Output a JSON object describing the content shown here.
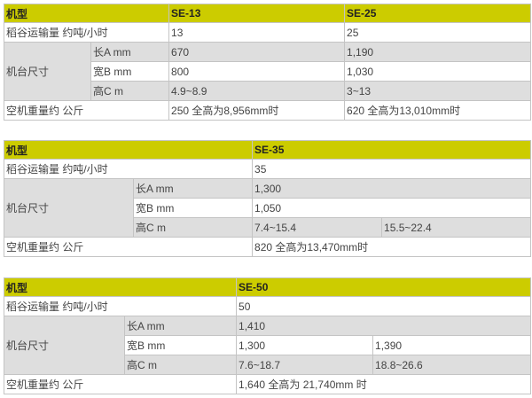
{
  "labels": {
    "model": "机型",
    "capacity": "稻谷运输量 约吨/小时",
    "dimensions": "机台尺寸",
    "length": "长A mm",
    "width": "宽B mm",
    "height": "高C m",
    "weight": "空机重量约 公斤"
  },
  "table1": {
    "models": [
      "SE-13",
      "SE-25"
    ],
    "capacity": [
      "13",
      "25"
    ],
    "length": [
      "670",
      "1,190"
    ],
    "width": [
      "800",
      "1,030"
    ],
    "height": [
      "4.9~8.9",
      "3~13"
    ],
    "weight": [
      "250 全高为8,956mm时",
      "620 全高为13,010mm时"
    ]
  },
  "table2": {
    "model": "SE-35",
    "capacity": "35",
    "length": "1,300",
    "width": "1,050",
    "height": [
      "7.4~15.4",
      "15.5~22.4"
    ],
    "weight": "820 全高为13,470mm时"
  },
  "table3": {
    "model": "SE-50",
    "capacity": "50",
    "length": "1,410",
    "width": [
      "1,300",
      "1,390"
    ],
    "height": [
      "7.6~18.7",
      "18.8~26.6"
    ],
    "weight": "1,640 全高为 21,740mm 时"
  },
  "colors": {
    "header": "#cccc00",
    "row_alt": "#dedede"
  }
}
